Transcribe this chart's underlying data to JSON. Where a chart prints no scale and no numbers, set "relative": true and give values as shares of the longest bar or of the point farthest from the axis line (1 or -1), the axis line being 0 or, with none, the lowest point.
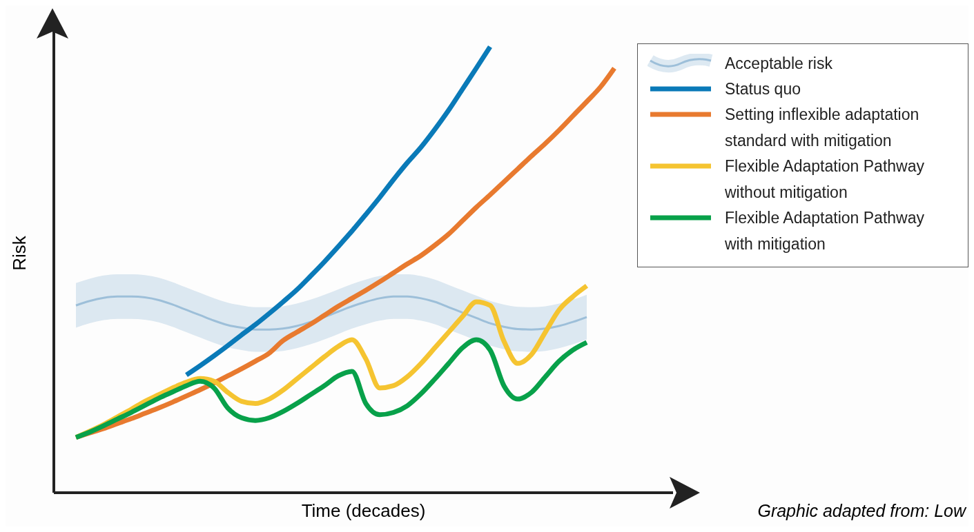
{
  "chart_data": {
    "type": "line",
    "relative": true,
    "xlabel": "Time (decades)",
    "ylabel": "Risk",
    "legend": "top right",
    "marker": "none",
    "line_style": "solid",
    "grid": false,
    "annotations": [
      "Graphic adapted from: Low"
    ],
    "categories": [
      null,
      null,
      null,
      null,
      null,
      null,
      null,
      null,
      null,
      null,
      null,
      null,
      null,
      null,
      null,
      null,
      null,
      null,
      null,
      null,
      null,
      null,
      null,
      null,
      null,
      null,
      null,
      null,
      null,
      null,
      null,
      null,
      null,
      null,
      null,
      null,
      null,
      null,
      null,
      null
    ],
    "series": [
      {
        "name": "Acceptable risk",
        "color": "#9dbfd9",
        "values": [
          0.42,
          0.43,
          0.437,
          0.44,
          0.44,
          0.438,
          0.432,
          0.422,
          0.41,
          0.398,
          0.386,
          0.376,
          0.37,
          0.366,
          0.366,
          0.368,
          0.374,
          0.383,
          0.394,
          0.406,
          0.418,
          0.428,
          0.436,
          0.44,
          0.44,
          0.436,
          0.428,
          0.416,
          0.404,
          0.392,
          0.38,
          0.372,
          0.367,
          0.366,
          0.368,
          0.374,
          0.383,
          0.394,
          null,
          null
        ],
        "lower": [
          0.37,
          0.38,
          0.387,
          0.39,
          0.39,
          0.388,
          0.382,
          0.372,
          0.36,
          0.348,
          0.336,
          0.326,
          0.32,
          0.316,
          0.316,
          0.318,
          0.324,
          0.333,
          0.344,
          0.356,
          0.368,
          0.378,
          0.386,
          0.39,
          0.39,
          0.386,
          0.378,
          0.366,
          0.354,
          0.342,
          0.33,
          0.322,
          0.317,
          0.316,
          0.318,
          0.324,
          0.333,
          0.344,
          null,
          null
        ],
        "upper": [
          0.47,
          0.48,
          0.487,
          0.49,
          0.49,
          0.488,
          0.482,
          0.472,
          0.46,
          0.448,
          0.436,
          0.426,
          0.42,
          0.416,
          0.416,
          0.418,
          0.424,
          0.433,
          0.444,
          0.456,
          0.468,
          0.478,
          0.486,
          0.49,
          0.49,
          0.486,
          0.478,
          0.466,
          0.454,
          0.442,
          0.43,
          0.422,
          0.417,
          0.416,
          0.418,
          0.424,
          0.433,
          0.444,
          null,
          null
        ]
      },
      {
        "name": "Status quo",
        "color": "#0a7ab8",
        "values": [
          null,
          null,
          null,
          null,
          null,
          null,
          null,
          null,
          0.264,
          0.285,
          0.307,
          0.33,
          0.354,
          0.377,
          0.402,
          0.428,
          0.455,
          0.486,
          0.518,
          0.552,
          0.587,
          0.624,
          0.662,
          0.702,
          0.74,
          0.775,
          0.815,
          0.858,
          0.905,
          0.952,
          1.0,
          null,
          null,
          null,
          null,
          null,
          null,
          null,
          null,
          null
        ]
      },
      {
        "name": "Setting inflexible adaptation standard with mitigation",
        "color": "#e87a2f",
        "values": [
          0.124,
          0.134,
          0.144,
          0.155,
          0.166,
          0.178,
          0.19,
          0.203,
          0.217,
          0.231,
          0.246,
          0.262,
          0.278,
          0.295,
          0.313,
          0.341,
          0.36,
          0.378,
          0.398,
          0.418,
          0.436,
          0.454,
          0.473,
          0.493,
          0.513,
          0.532,
          0.555,
          0.58,
          0.61,
          0.64,
          0.668,
          0.697,
          0.726,
          0.755,
          0.783,
          0.813,
          0.845,
          0.877,
          0.91,
          0.952
        ]
      },
      {
        "name": "Flexible Adaptation Pathway without mitigation",
        "color": "#f5c431",
        "values": [
          0.124,
          0.138,
          0.153,
          0.17,
          0.187,
          0.205,
          0.22,
          0.235,
          0.248,
          0.256,
          0.25,
          0.225,
          0.205,
          0.2,
          0.21,
          0.23,
          0.255,
          0.28,
          0.305,
          0.328,
          0.343,
          0.3,
          0.235,
          0.24,
          0.26,
          0.29,
          0.325,
          0.36,
          0.395,
          0.428,
          0.42,
          0.34,
          0.29,
          0.31,
          0.36,
          0.41,
          0.44,
          0.464,
          null,
          null
        ]
      },
      {
        "name": "Flexible Adaptation Pathway with mitigation",
        "color": "#08a14a",
        "values": [
          0.124,
          0.136,
          0.15,
          0.165,
          0.18,
          0.196,
          0.212,
          0.226,
          0.24,
          0.25,
          0.235,
          0.19,
          0.168,
          0.162,
          0.168,
          0.182,
          0.2,
          0.22,
          0.24,
          0.262,
          0.272,
          0.2,
          0.175,
          0.18,
          0.195,
          0.222,
          0.255,
          0.29,
          0.325,
          0.343,
          0.32,
          0.24,
          0.21,
          0.225,
          0.26,
          0.295,
          0.32,
          0.337,
          null,
          null
        ]
      }
    ]
  }
}
